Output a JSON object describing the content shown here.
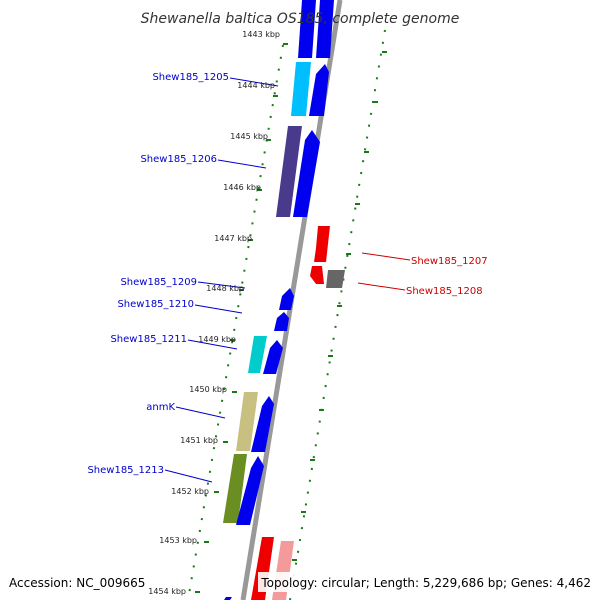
{
  "title": "Shewanella baltica OS185, complete genome",
  "accession": "Accession: NC_009665",
  "topology": "Topology: circular; Length: 5,229,686 bp; Genes: 4,462",
  "colors": {
    "label_left": "#0000cc",
    "label_right": "#cc0000",
    "tick_green": "#1a7a1a",
    "backbone": "#999999"
  },
  "kbp_ticks": [
    {
      "label": "1443 kbp"
    },
    {
      "label": "1444 kbp"
    },
    {
      "label": "1445 kbp"
    },
    {
      "label": "1446 kbp"
    },
    {
      "label": "1447 kbp"
    },
    {
      "label": "1448 kbp"
    },
    {
      "label": "1449 kbp"
    },
    {
      "label": "1450 kbp"
    },
    {
      "label": "1451 kbp"
    },
    {
      "label": "1452 kbp"
    },
    {
      "label": "1453 kbp"
    },
    {
      "label": "1454 kbp"
    }
  ],
  "gene_labels": [
    {
      "name": "Shew185_1205",
      "side": "left"
    },
    {
      "name": "Shew185_1206",
      "side": "left"
    },
    {
      "name": "Shew185_1209",
      "side": "left"
    },
    {
      "name": "Shew185_1210",
      "side": "left"
    },
    {
      "name": "Shew185_1211",
      "side": "left"
    },
    {
      "name": "anmK",
      "side": "left"
    },
    {
      "name": "Shew185_1213",
      "side": "left"
    },
    {
      "name": "Shew185_1207",
      "side": "right"
    },
    {
      "name": "Shew185_1208",
      "side": "right"
    }
  ]
}
